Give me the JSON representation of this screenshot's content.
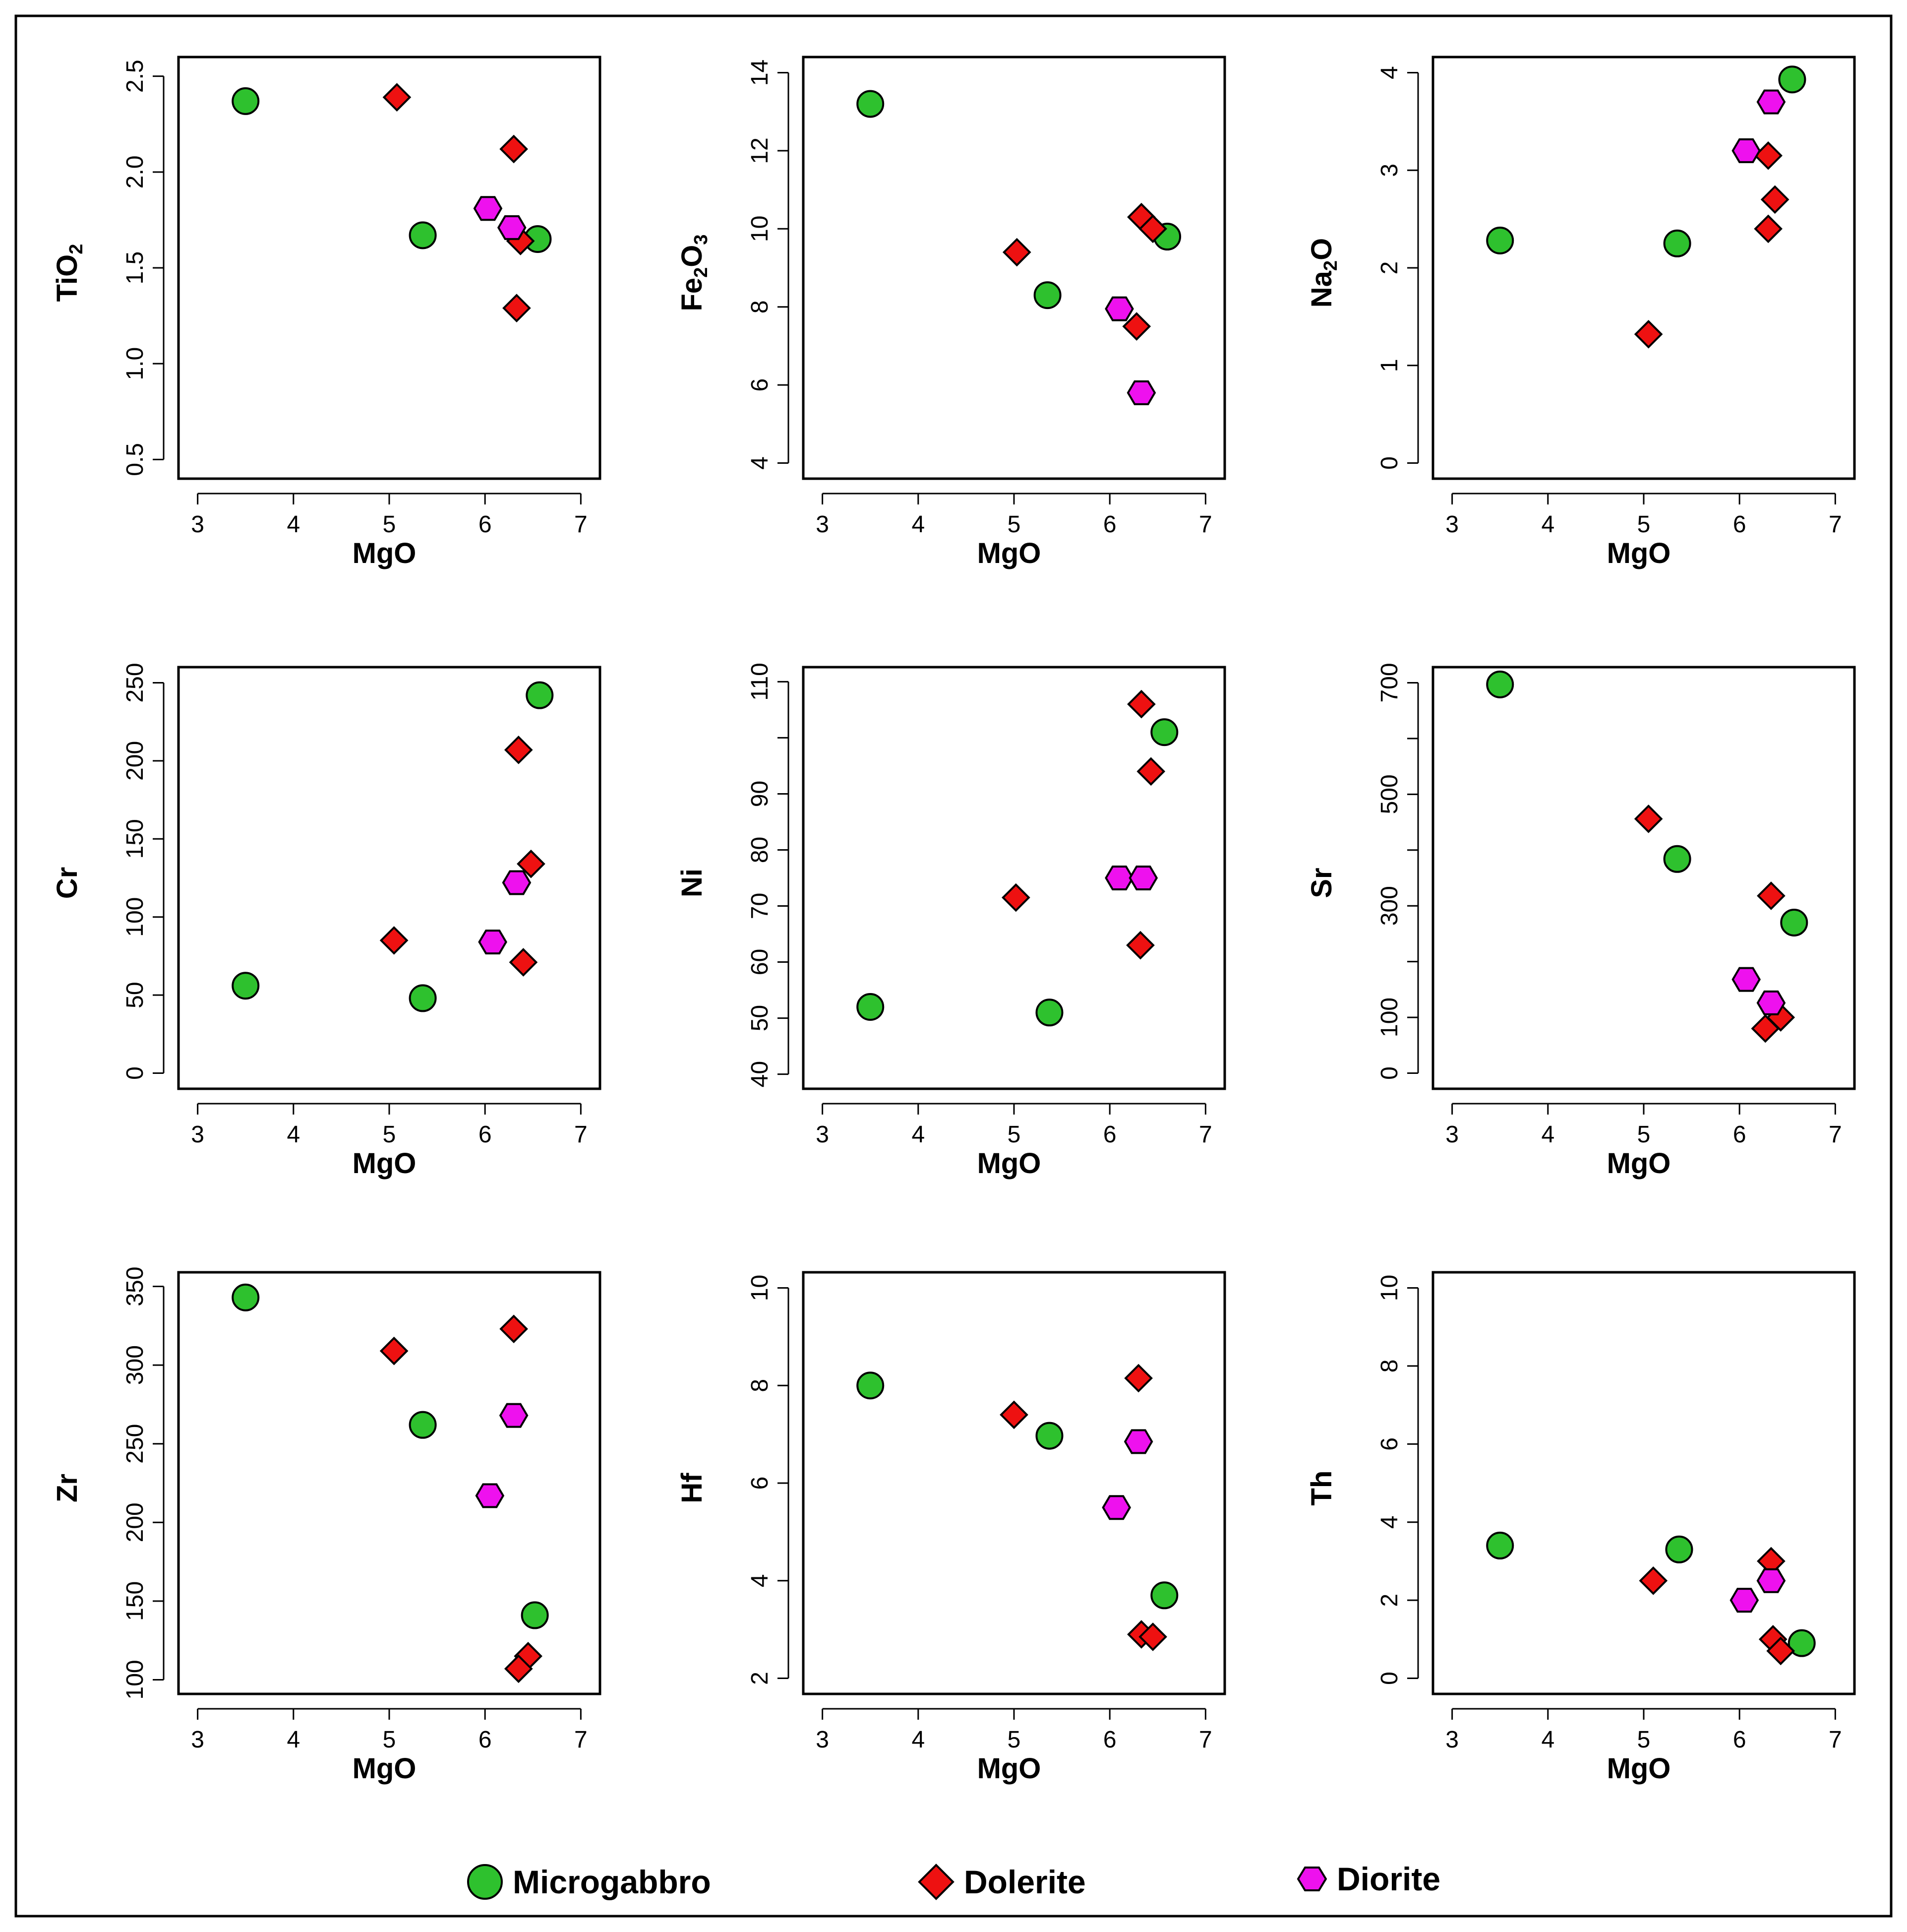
{
  "legend": {
    "items": [
      {
        "name": "Microgabbro",
        "marker": "circle",
        "color": "#2ec12e"
      },
      {
        "name": "Dolerite",
        "marker": "diamond",
        "color": "#ee1111"
      },
      {
        "name": "Diorite",
        "marker": "hexagon",
        "color": "#ee11ee"
      }
    ]
  },
  "chart_data": [
    {
      "type": "scatter",
      "xlabel": "MgO",
      "ylabel": {
        "base": "TiO",
        "sub": "2",
        "after": ""
      },
      "xlim": [
        2.8,
        7.2
      ],
      "ylim": [
        0.4,
        2.6
      ],
      "xticks": [
        3,
        4,
        5,
        6,
        7
      ],
      "yticks": [
        0.5,
        1.0,
        1.5,
        2.0,
        2.5
      ],
      "yticklabels": [
        "0.5",
        "1.0",
        "1.5",
        "2.0",
        "2.5"
      ],
      "series": [
        {
          "name": "Microgabbro",
          "x": [
            3.5,
            5.35,
            6.55
          ],
          "y": [
            2.37,
            1.67,
            1.65
          ]
        },
        {
          "name": "Dolerite",
          "x": [
            5.08,
            6.3,
            6.37,
            6.33
          ],
          "y": [
            2.39,
            2.12,
            1.64,
            1.29
          ]
        },
        {
          "name": "Diorite",
          "x": [
            6.03,
            6.28
          ],
          "y": [
            1.81,
            1.71
          ]
        }
      ]
    },
    {
      "type": "scatter",
      "xlabel": "MgO",
      "ylabel": {
        "base": "Fe",
        "sub": "2",
        "after": "O",
        "sub2": "3"
      },
      "xlim": [
        2.8,
        7.2
      ],
      "ylim": [
        3.6,
        14.4
      ],
      "xticks": [
        3,
        4,
        5,
        6,
        7
      ],
      "yticks": [
        4,
        6,
        8,
        10,
        12,
        14
      ],
      "yticklabels": [
        "4",
        "6",
        "8",
        "10",
        "12",
        "14"
      ],
      "series": [
        {
          "name": "Microgabbro",
          "x": [
            3.5,
            5.35,
            6.6
          ],
          "y": [
            13.2,
            8.3,
            9.8
          ]
        },
        {
          "name": "Dolerite",
          "x": [
            5.03,
            6.33,
            6.45,
            6.28
          ],
          "y": [
            9.4,
            10.3,
            10.0,
            7.5
          ]
        },
        {
          "name": "Diorite",
          "x": [
            6.1,
            6.33
          ],
          "y": [
            7.95,
            5.8
          ]
        }
      ]
    },
    {
      "type": "scatter",
      "xlabel": "MgO",
      "ylabel": {
        "base": "Na",
        "sub": "2",
        "after": "O"
      },
      "xlim": [
        2.8,
        7.2
      ],
      "ylim": [
        -0.16,
        4.16
      ],
      "xticks": [
        3,
        4,
        5,
        6,
        7
      ],
      "yticks": [
        0,
        1,
        2,
        3,
        4
      ],
      "yticklabels": [
        "0",
        "1",
        "2",
        "3",
        "4"
      ],
      "series": [
        {
          "name": "Microgabbro",
          "x": [
            3.5,
            5.35,
            6.55
          ],
          "y": [
            2.28,
            2.25,
            3.93
          ]
        },
        {
          "name": "Dolerite",
          "x": [
            5.05,
            6.3,
            6.37,
            6.3
          ],
          "y": [
            1.32,
            3.15,
            2.7,
            2.4
          ]
        },
        {
          "name": "Diorite",
          "x": [
            6.07,
            6.33
          ],
          "y": [
            3.2,
            3.7
          ]
        }
      ]
    },
    {
      "type": "scatter",
      "xlabel": "MgO",
      "ylabel": {
        "base": "Cr"
      },
      "xlim": [
        2.8,
        7.2
      ],
      "ylim": [
        -10,
        260
      ],
      "xticks": [
        3,
        4,
        5,
        6,
        7
      ],
      "yticks": [
        0,
        50,
        100,
        150,
        200,
        250
      ],
      "yticklabels": [
        "0",
        "50",
        "100",
        "150",
        "200",
        "250"
      ],
      "series": [
        {
          "name": "Microgabbro",
          "x": [
            3.5,
            5.35,
            6.57
          ],
          "y": [
            56,
            48,
            242
          ]
        },
        {
          "name": "Dolerite",
          "x": [
            5.05,
            6.35,
            6.48,
            6.4
          ],
          "y": [
            85,
            207,
            134,
            71
          ]
        },
        {
          "name": "Diorite",
          "x": [
            6.08,
            6.33
          ],
          "y": [
            84,
            122
          ]
        }
      ]
    },
    {
      "type": "scatter",
      "xlabel": "MgO",
      "ylabel": {
        "base": "Ni"
      },
      "xlim": [
        2.8,
        7.2
      ],
      "ylim": [
        37.4,
        112.6
      ],
      "xticks": [
        3,
        4,
        5,
        6,
        7
      ],
      "yticks": [
        40,
        50,
        60,
        70,
        80,
        90,
        100,
        110
      ],
      "yticklabels": [
        "40",
        "50",
        "60",
        "70",
        "80",
        "90",
        "",
        "110"
      ],
      "series": [
        {
          "name": "Microgabbro",
          "x": [
            3.5,
            5.37,
            6.57
          ],
          "y": [
            52,
            51,
            101
          ]
        },
        {
          "name": "Dolerite",
          "x": [
            5.02,
            6.33,
            6.43,
            6.32
          ],
          "y": [
            71.5,
            106,
            94,
            63
          ]
        },
        {
          "name": "Diorite",
          "x": [
            6.1,
            6.35
          ],
          "y": [
            75,
            75
          ]
        }
      ]
    },
    {
      "type": "scatter",
      "xlabel": "MgO",
      "ylabel": {
        "base": "Sr"
      },
      "xlim": [
        2.8,
        7.2
      ],
      "ylim": [
        -28,
        728
      ],
      "xticks": [
        3,
        4,
        5,
        6,
        7
      ],
      "yticks": [
        0,
        100,
        200,
        300,
        400,
        500,
        600,
        700
      ],
      "yticklabels": [
        "0",
        "100",
        "",
        "300",
        "",
        "500",
        "",
        "700"
      ],
      "series": [
        {
          "name": "Microgabbro",
          "x": [
            3.5,
            5.35,
            6.57
          ],
          "y": [
            697,
            384,
            270
          ]
        },
        {
          "name": "Dolerite",
          "x": [
            5.05,
            6.33,
            6.43,
            6.27
          ],
          "y": [
            456,
            318,
            100,
            80
          ]
        },
        {
          "name": "Diorite",
          "x": [
            6.07,
            6.33
          ],
          "y": [
            168,
            126
          ]
        }
      ]
    },
    {
      "type": "scatter",
      "xlabel": "MgO",
      "ylabel": {
        "base": "Zr"
      },
      "xlim": [
        2.8,
        7.2
      ],
      "ylim": [
        91,
        359
      ],
      "xticks": [
        3,
        4,
        5,
        6,
        7
      ],
      "yticks": [
        100,
        150,
        200,
        250,
        300,
        350
      ],
      "yticklabels": [
        "100",
        "150",
        "200",
        "250",
        "300",
        "350"
      ],
      "series": [
        {
          "name": "Microgabbro",
          "x": [
            3.5,
            5.35,
            6.52
          ],
          "y": [
            343,
            262,
            141
          ]
        },
        {
          "name": "Dolerite",
          "x": [
            5.05,
            6.3,
            6.45,
            6.35
          ],
          "y": [
            309,
            323,
            115,
            107
          ]
        },
        {
          "name": "Diorite",
          "x": [
            6.05,
            6.3
          ],
          "y": [
            217,
            268
          ]
        }
      ]
    },
    {
      "type": "scatter",
      "xlabel": "MgO",
      "ylabel": {
        "base": "Hf"
      },
      "xlim": [
        2.8,
        7.2
      ],
      "ylim": [
        1.68,
        10.32
      ],
      "xticks": [
        3,
        4,
        5,
        6,
        7
      ],
      "yticks": [
        2,
        4,
        6,
        8,
        10
      ],
      "yticklabels": [
        "2",
        "4",
        "6",
        "8",
        "10"
      ],
      "series": [
        {
          "name": "Microgabbro",
          "x": [
            3.5,
            5.37,
            6.57
          ],
          "y": [
            8.0,
            6.97,
            3.7
          ]
        },
        {
          "name": "Dolerite",
          "x": [
            5.0,
            6.3,
            6.33,
            6.45
          ],
          "y": [
            7.4,
            8.15,
            2.9,
            2.85
          ]
        },
        {
          "name": "Diorite",
          "x": [
            6.07,
            6.3
          ],
          "y": [
            5.5,
            6.85
          ]
        }
      ]
    },
    {
      "type": "scatter",
      "xlabel": "MgO",
      "ylabel": {
        "base": "Th"
      },
      "xlim": [
        2.8,
        7.2
      ],
      "ylim": [
        -0.4,
        10.4
      ],
      "xticks": [
        3,
        4,
        5,
        6,
        7
      ],
      "yticks": [
        0,
        2,
        4,
        6,
        8,
        10
      ],
      "yticklabels": [
        "0",
        "2",
        "4",
        "6",
        "8",
        "10"
      ],
      "series": [
        {
          "name": "Microgabbro",
          "x": [
            3.5,
            5.37,
            6.65
          ],
          "y": [
            3.4,
            3.3,
            0.9
          ]
        },
        {
          "name": "Dolerite",
          "x": [
            5.1,
            6.33,
            6.35,
            6.43
          ],
          "y": [
            2.5,
            3.0,
            1.0,
            0.7
          ]
        },
        {
          "name": "Diorite",
          "x": [
            6.05,
            6.33
          ],
          "y": [
            2.0,
            2.5
          ]
        }
      ]
    }
  ]
}
